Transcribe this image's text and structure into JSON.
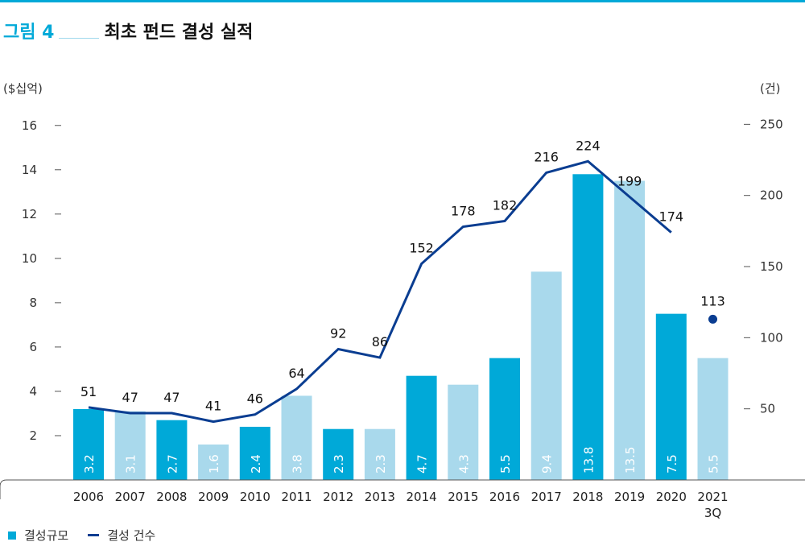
{
  "figure": {
    "label": "그림 4",
    "title": "최초 펀드 결성 실적"
  },
  "chart_data": {
    "type": "bar+line",
    "categories": [
      "2006",
      "2007",
      "2008",
      "2009",
      "2010",
      "2011",
      "2012",
      "2013",
      "2014",
      "2015",
      "2016",
      "2017",
      "2018",
      "2019",
      "2020",
      "2021\n3Q"
    ],
    "left_axis": {
      "unit": "($십억)",
      "ticks": [
        2,
        4,
        6,
        8,
        10,
        12,
        14,
        16
      ],
      "range": [
        0,
        16.5
      ]
    },
    "right_axis": {
      "unit": "(건)",
      "ticks": [
        50,
        100,
        150,
        200,
        250
      ],
      "range": [
        0,
        257
      ]
    },
    "series": [
      {
        "name": "결성규모",
        "type": "bar",
        "axis": "left",
        "values": [
          3.2,
          3.1,
          2.7,
          1.6,
          2.4,
          3.8,
          2.3,
          2.3,
          4.7,
          4.3,
          5.5,
          9.4,
          13.8,
          13.5,
          7.5,
          5.5
        ],
        "labels": [
          "3.2",
          "3.1",
          "2.7",
          "1.6",
          "2.4",
          "3.8",
          "2.3",
          "2.3",
          "4.7",
          "4.3",
          "5.5",
          "9.4",
          "13.8",
          "13.5",
          "7.5",
          "5.5"
        ],
        "shade": [
          "dark",
          "light",
          "dark",
          "light",
          "dark",
          "light",
          "dark",
          "light",
          "dark",
          "light",
          "dark",
          "light",
          "dark",
          "light",
          "dark",
          "light"
        ]
      },
      {
        "name": "결성 건수",
        "type": "line",
        "axis": "right",
        "values": [
          51,
          47,
          47,
          41,
          46,
          64,
          92,
          86,
          152,
          178,
          182,
          216,
          224,
          199,
          174,
          null
        ],
        "marker": {
          "category": "2021\n3Q",
          "value": 113
        }
      }
    ],
    "colors": {
      "dark": "#00a9d8",
      "light": "#a9d9ec",
      "line": "#0a3d91",
      "accent": "#00a9d8"
    },
    "legend_position": "bottom-left",
    "grid": false
  }
}
